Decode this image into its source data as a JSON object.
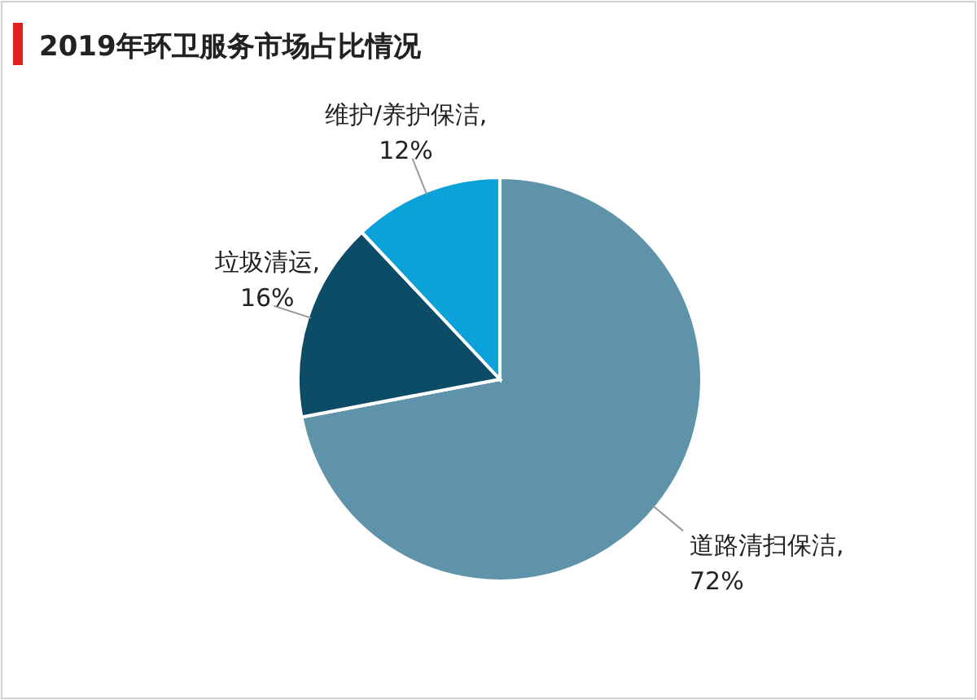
{
  "chart_data": {
    "type": "pie",
    "title": "2019年环卫服务市场占比情况",
    "categories": [
      "道路清扫保洁",
      "垃圾清运",
      "维护/养护保洁"
    ],
    "values": [
      72,
      16,
      12
    ],
    "value_labels": [
      ", 72%",
      ", 16%",
      ", 12%"
    ],
    "colors": [
      "#5e93a9",
      "#0d4c66",
      "#0ba1d9"
    ],
    "legend": false
  }
}
